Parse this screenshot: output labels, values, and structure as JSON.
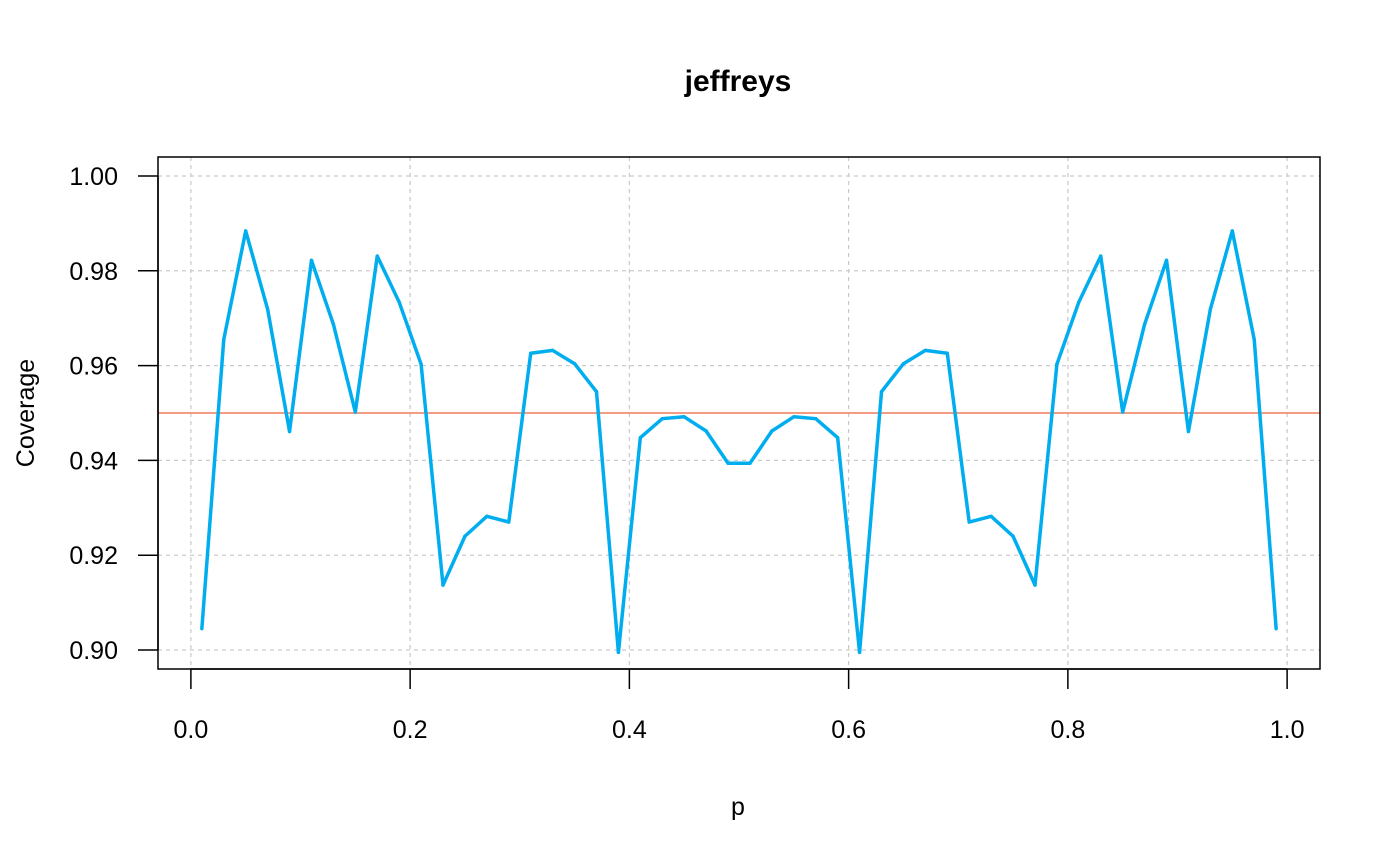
{
  "chart_data": {
    "type": "line",
    "title": "jeffreys",
    "xlabel": "p",
    "ylabel": "Coverage",
    "xlim": [
      -0.03,
      1.03
    ],
    "ylim": [
      0.896,
      1.004
    ],
    "xticks": [
      0.0,
      0.2,
      0.4,
      0.6,
      0.8,
      1.0
    ],
    "xtick_labels": [
      "0.0",
      "0.2",
      "0.4",
      "0.6",
      "0.8",
      "1.0"
    ],
    "yticks": [
      0.9,
      0.92,
      0.94,
      0.96,
      0.98,
      1.0
    ],
    "ytick_labels": [
      "0.90",
      "0.92",
      "0.94",
      "0.96",
      "0.98",
      "1.00"
    ],
    "grid": true,
    "reference_line": {
      "y": 0.95,
      "color": "#f07a5c"
    },
    "series": [
      {
        "color": "#00aeef",
        "x": [
          0.01,
          0.03,
          0.05,
          0.07,
          0.09,
          0.11,
          0.13,
          0.15,
          0.17,
          0.19,
          0.21,
          0.23,
          0.25,
          0.27,
          0.29,
          0.31,
          0.33,
          0.35,
          0.37,
          0.39,
          0.41,
          0.43,
          0.45,
          0.47,
          0.49,
          0.51,
          0.53,
          0.55,
          0.57,
          0.59,
          0.61,
          0.63,
          0.65,
          0.67,
          0.69,
          0.71,
          0.73,
          0.75,
          0.77,
          0.79,
          0.81,
          0.83,
          0.85,
          0.87,
          0.89,
          0.91,
          0.93,
          0.95,
          0.97,
          0.99
        ],
        "values": [
          0.9045,
          0.9655,
          0.9884,
          0.9719,
          0.9461,
          0.9822,
          0.9687,
          0.9502,
          0.9831,
          0.9734,
          0.9603,
          0.9137,
          0.924,
          0.9282,
          0.927,
          0.9626,
          0.9632,
          0.9604,
          0.9545,
          0.8995,
          0.9448,
          0.9488,
          0.9492,
          0.9462,
          0.9394,
          0.9394,
          0.9462,
          0.9492,
          0.9488,
          0.9448,
          0.8995,
          0.9545,
          0.9604,
          0.9632,
          0.9626,
          0.927,
          0.9282,
          0.924,
          0.9137,
          0.9603,
          0.9734,
          0.9831,
          0.9502,
          0.9687,
          0.9822,
          0.9461,
          0.9719,
          0.9884,
          0.9655,
          0.9045
        ]
      }
    ]
  }
}
